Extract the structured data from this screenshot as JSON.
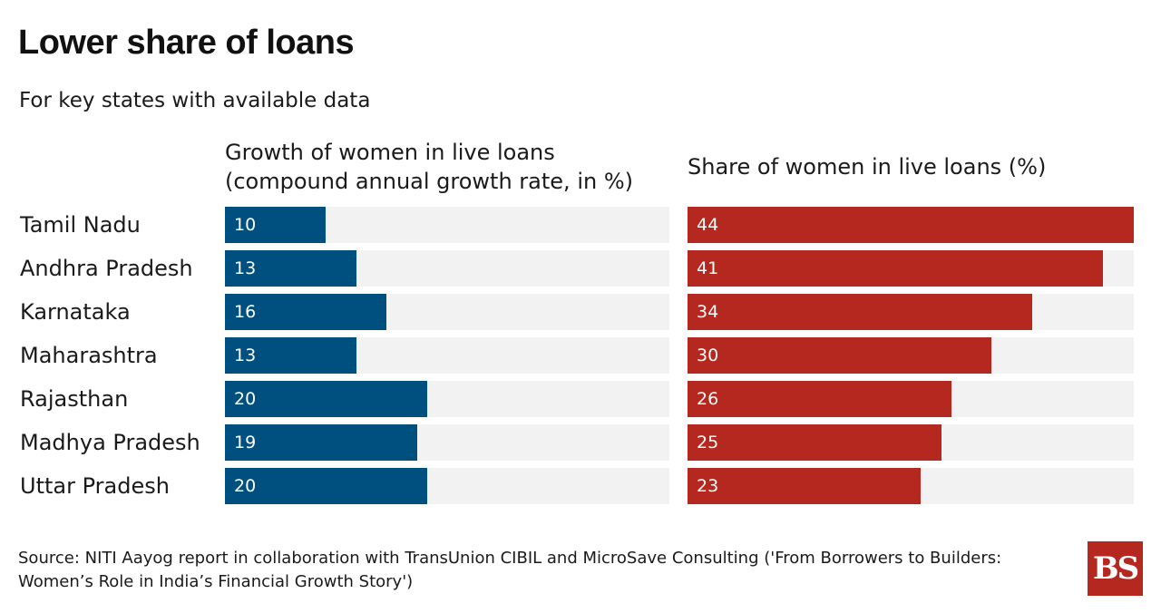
{
  "title": "Lower share of loans",
  "subtitle": "For key states with available data",
  "left_header": [
    "Growth of women in live loans",
    "(compound annual growth rate, in %)"
  ],
  "right_header": "Share of women in live loans (%)",
  "source": "Source: NITI Aayog report in collaboration with TransUnion CIBIL and MicroSave Consulting ('From Borrowers to Builders: Women’s Role in India’s Financial Growth Story')",
  "logo_text": "BS",
  "colors": {
    "growth": "#00507f",
    "share": "#b5281f",
    "track": "#f2f2f2"
  },
  "chart_data": {
    "type": "bar",
    "categories": [
      "Tamil Nadu",
      "Andhra Pradesh",
      "Karnataka",
      "Maharashtra",
      "Rajasthan",
      "Madhya Pradesh",
      "Uttar Pradesh"
    ],
    "series": [
      {
        "name": "Growth of women in live loans (compound annual growth rate, in %)",
        "values": [
          10,
          13,
          16,
          13,
          20,
          19,
          20
        ],
        "xlim": [
          0,
          44
        ]
      },
      {
        "name": "Share of women in live loans (%)",
        "values": [
          44,
          41,
          34,
          30,
          26,
          25,
          23
        ],
        "xlim": [
          0,
          44
        ]
      }
    ]
  }
}
